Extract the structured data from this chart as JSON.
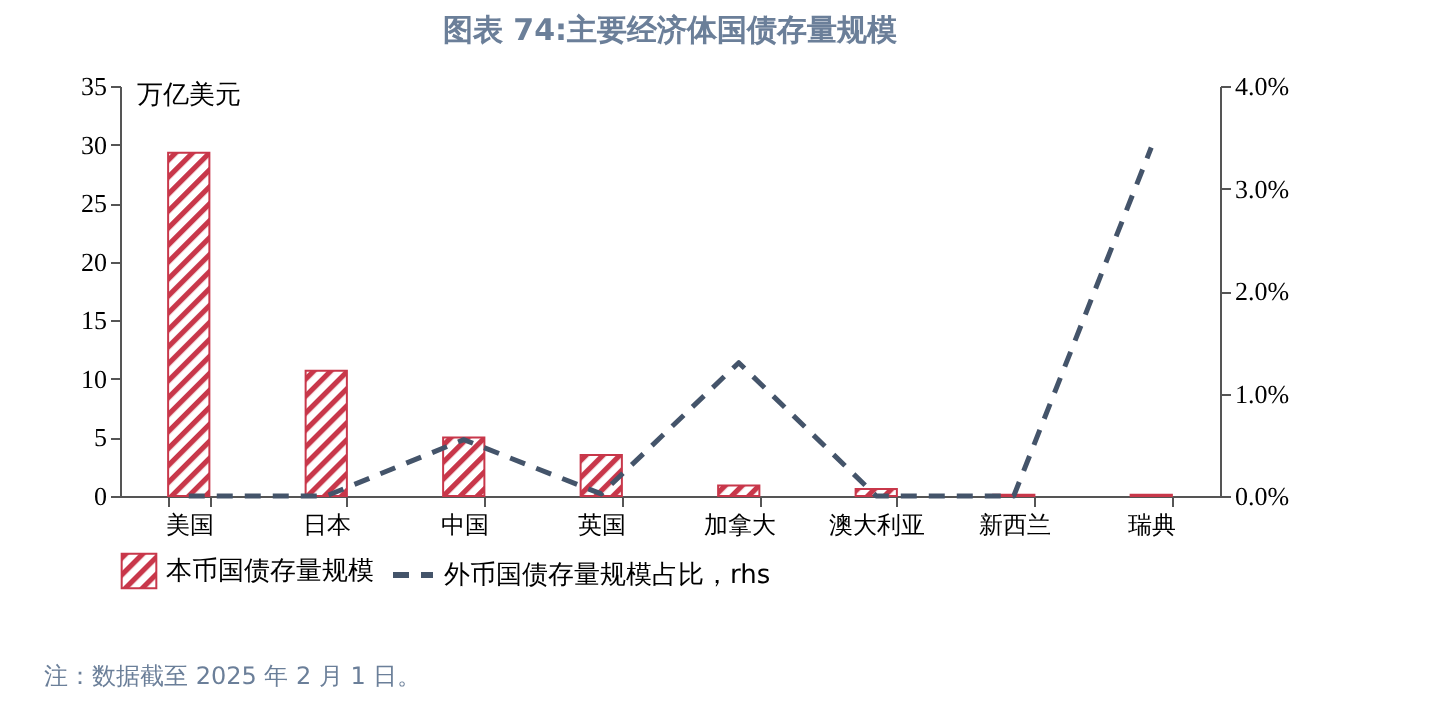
{
  "chart_data": {
    "type": "bar",
    "title": "图表 74:主要经济体国债存量规模",
    "ylabel": "万亿美元",
    "categories": [
      "美国",
      "日本",
      "中国",
      "英国",
      "加拿大",
      "澳大利亚",
      "新西兰",
      "瑞典"
    ],
    "series": [
      {
        "name": "本币国债存量规模",
        "color": "#c8374a",
        "values": [
          29.3,
          10.7,
          5.0,
          3.5,
          0.9,
          0.6,
          0.1,
          0.1
        ]
      },
      {
        "name": "外币国债存量规模占比，rhs",
        "type": "line",
        "axis": "y2",
        "color": "#44546a",
        "line_style": "dashed",
        "marker": "none",
        "values": [
          0.0,
          0.0,
          0.55,
          0.02,
          1.3,
          0.0,
          0.0,
          3.4
        ]
      }
    ],
    "ylim": [
      0,
      35
    ],
    "yticks": [
      0,
      5,
      10,
      15,
      20,
      25,
      30,
      35
    ],
    "y2lim": [
      0,
      4
    ],
    "y2ticks": [
      {
        "value": 0,
        "label": "0.0%"
      },
      {
        "value": 1,
        "label": "1.0%"
      },
      {
        "value": 2,
        "label": "2.0%"
      },
      {
        "value": 3,
        "label": "3.0%"
      },
      {
        "value": 4,
        "label": "4.0%"
      }
    ],
    "grid": false,
    "legend": "bottom",
    "annotations": [
      "注：数据截至 2025 年 2 月 1 日。"
    ]
  }
}
